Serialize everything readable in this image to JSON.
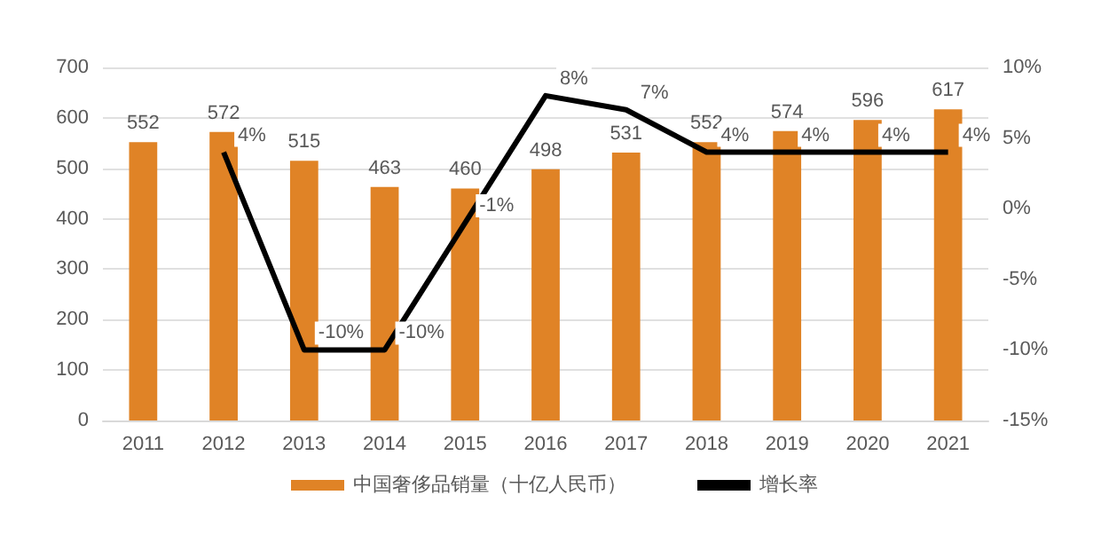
{
  "chart_data": {
    "type": "bar",
    "categories": [
      "2011",
      "2012",
      "2013",
      "2014",
      "2015",
      "2016",
      "2017",
      "2018",
      "2019",
      "2020",
      "2021"
    ],
    "series": [
      {
        "name": "中国奢侈品销量（十亿人民币）",
        "color": "#e08326",
        "values": [
          552,
          572,
          515,
          463,
          460,
          498,
          531,
          552,
          574,
          596,
          617
        ],
        "value_labels": [
          "552",
          "572",
          "515",
          "463",
          "460",
          "498",
          "531",
          "552",
          "574",
          "596",
          "617"
        ]
      },
      {
        "name": "增长率",
        "type": "line",
        "axis": "y2",
        "color": "#000000",
        "values": [
          null,
          4,
          -10,
          -10,
          -1,
          8,
          7,
          4,
          4,
          4,
          4
        ],
        "value_labels": [
          null,
          "4%",
          "-10%",
          "-10%",
          "-1%",
          "8%",
          "7%",
          "4%",
          "4%",
          "4%",
          "4%"
        ]
      }
    ],
    "ylim": [
      0,
      700
    ],
    "yticks": [
      0,
      100,
      200,
      300,
      400,
      500,
      600,
      700
    ],
    "y2lim": [
      -15,
      10
    ],
    "y2ticks": [
      {
        "value": -15,
        "label": "-15%"
      },
      {
        "value": -10,
        "label": "-10%"
      },
      {
        "value": -5,
        "label": "-5%"
      },
      {
        "value": 0,
        "label": "0%"
      },
      {
        "value": 5,
        "label": "5%"
      },
      {
        "value": 10,
        "label": "10%"
      }
    ],
    "grid": "y",
    "legend": "bottom",
    "marker": "none",
    "line_style": "solid"
  }
}
